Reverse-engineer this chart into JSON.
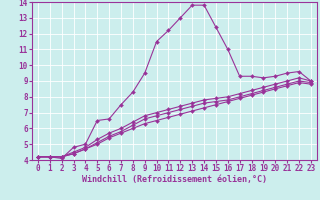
{
  "xlabel": "Windchill (Refroidissement éolien,°C)",
  "xlim": [
    -0.5,
    23.5
  ],
  "ylim": [
    4,
    14
  ],
  "xticks": [
    0,
    1,
    2,
    3,
    4,
    5,
    6,
    7,
    8,
    9,
    10,
    11,
    12,
    13,
    14,
    15,
    16,
    17,
    18,
    19,
    20,
    21,
    22,
    23
  ],
  "yticks": [
    4,
    5,
    6,
    7,
    8,
    9,
    10,
    11,
    12,
    13,
    14
  ],
  "bg_color": "#cceeed",
  "grid_color": "#b0ddd9",
  "line_color": "#993399",
  "lines": [
    [
      4.2,
      4.2,
      4.1,
      4.8,
      5.0,
      6.5,
      6.6,
      7.5,
      8.3,
      9.5,
      11.5,
      12.2,
      13.0,
      13.8,
      13.8,
      12.4,
      11.0,
      9.3,
      9.3,
      9.2,
      9.3,
      9.5,
      9.6,
      9.0
    ],
    [
      4.2,
      4.2,
      4.2,
      4.5,
      4.8,
      5.3,
      5.7,
      6.0,
      6.4,
      6.8,
      7.0,
      7.2,
      7.4,
      7.6,
      7.8,
      7.9,
      8.0,
      8.2,
      8.4,
      8.6,
      8.8,
      9.0,
      9.2,
      9.0
    ],
    [
      4.2,
      4.2,
      4.2,
      4.4,
      4.7,
      5.1,
      5.5,
      5.8,
      6.2,
      6.6,
      6.8,
      7.0,
      7.2,
      7.4,
      7.6,
      7.7,
      7.8,
      8.0,
      8.2,
      8.4,
      8.6,
      8.8,
      9.0,
      8.9
    ],
    [
      4.2,
      4.2,
      4.2,
      4.4,
      4.7,
      5.0,
      5.4,
      5.7,
      6.0,
      6.3,
      6.5,
      6.7,
      6.9,
      7.1,
      7.3,
      7.5,
      7.7,
      7.9,
      8.1,
      8.3,
      8.5,
      8.7,
      8.9,
      8.8
    ]
  ],
  "marker": "D",
  "markersize": 2.0,
  "linewidth": 0.8,
  "tick_fontsize": 5.5,
  "xlabel_fontsize": 6.0
}
